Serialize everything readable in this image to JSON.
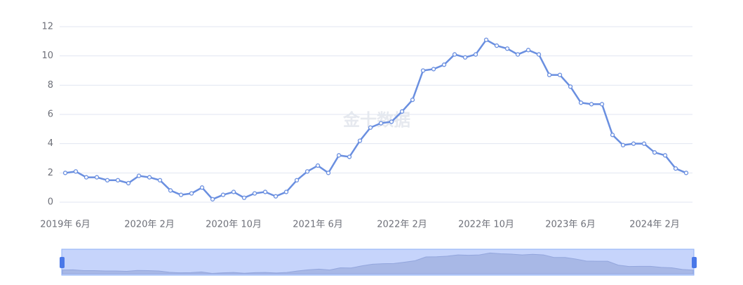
{
  "chart_data": {
    "type": "line",
    "watermark": "金十数据",
    "categories": [
      "2019年 6月",
      null,
      null,
      null,
      null,
      null,
      null,
      null,
      "2020年 2月",
      null,
      null,
      null,
      null,
      null,
      null,
      null,
      "2020年 10月",
      null,
      null,
      null,
      null,
      null,
      null,
      null,
      "2021年 6月",
      null,
      null,
      null,
      null,
      null,
      null,
      null,
      "2022年 2月",
      null,
      null,
      null,
      null,
      null,
      null,
      null,
      "2022年 10月",
      null,
      null,
      null,
      null,
      null,
      null,
      null,
      "2023年 6月",
      null,
      null,
      null,
      null,
      null,
      null,
      null,
      "2024年 2月",
      null,
      null,
      null
    ],
    "series": [
      {
        "color": "#6a8fe0",
        "values": [
          2.0,
          2.1,
          1.7,
          1.7,
          1.5,
          1.5,
          1.3,
          1.8,
          1.7,
          1.5,
          0.8,
          0.5,
          0.6,
          1.0,
          0.2,
          0.5,
          0.7,
          0.3,
          0.6,
          0.7,
          0.4,
          0.7,
          1.5,
          2.1,
          2.5,
          2.0,
          3.2,
          3.1,
          4.2,
          5.1,
          5.4,
          5.5,
          6.2,
          7.0,
          9.0,
          9.1,
          9.4,
          10.1,
          9.9,
          10.1,
          11.1,
          10.7,
          10.5,
          10.1,
          10.4,
          10.1,
          8.7,
          8.7,
          7.9,
          6.8,
          6.7,
          6.7,
          4.6,
          3.9,
          4.0,
          4.0,
          3.4,
          3.2,
          2.3,
          2.0
        ]
      }
    ],
    "ylim": [
      0,
      12
    ],
    "yticks": [
      0,
      2,
      4,
      6,
      8,
      10,
      12
    ],
    "grid": true
  }
}
